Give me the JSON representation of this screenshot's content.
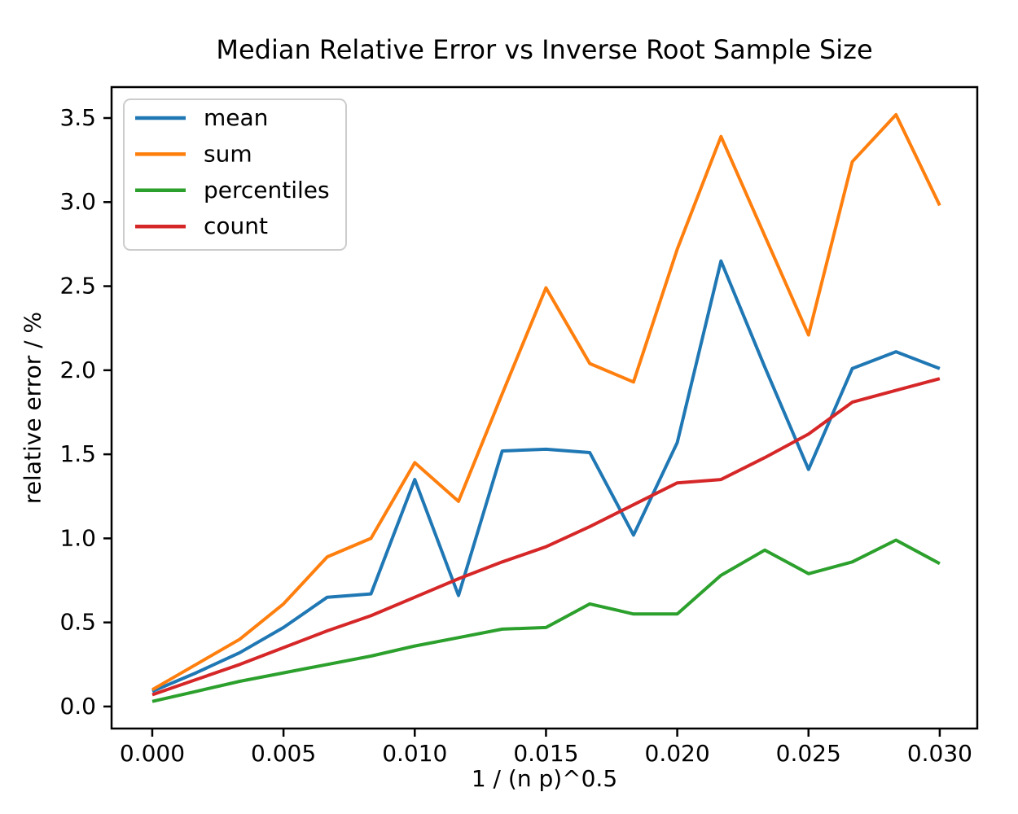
{
  "chart_data": {
    "type": "line",
    "title": "Median Relative Error vs Inverse Root Sample Size",
    "xlabel": "1 / (n p)^0.5",
    "ylabel": "relative error / %",
    "grid": false,
    "legend_position": "upper left",
    "xlim": [
      -0.00155,
      0.03143
    ],
    "ylim": [
      -0.131,
      3.684
    ],
    "x_ticks": {
      "values": [
        0.0,
        0.005,
        0.01,
        0.015,
        0.02,
        0.025,
        0.03
      ],
      "labels": [
        "0.000",
        "0.005",
        "0.010",
        "0.015",
        "0.020",
        "0.025",
        "0.030"
      ]
    },
    "y_ticks": {
      "values": [
        0.0,
        0.5,
        1.0,
        1.5,
        2.0,
        2.5,
        3.0,
        3.5
      ],
      "labels": [
        "0.0",
        "0.5",
        "1.0",
        "1.5",
        "2.0",
        "2.5",
        "3.0",
        "3.5"
      ]
    },
    "x": [
      0.0,
      0.001667,
      0.003333,
      0.005,
      0.006667,
      0.008333,
      0.01,
      0.011667,
      0.013333,
      0.015,
      0.016667,
      0.018333,
      0.02,
      0.021667,
      0.023333,
      0.025,
      0.026667,
      0.028333,
      0.03
    ],
    "series": [
      {
        "name": "mean",
        "color": "#1f77b4",
        "values": [
          0.09,
          0.2,
          0.32,
          0.47,
          0.65,
          0.67,
          1.35,
          0.66,
          1.52,
          1.53,
          1.51,
          1.02,
          1.57,
          2.65,
          2.02,
          1.41,
          2.01,
          2.11,
          2.01
        ]
      },
      {
        "name": "sum",
        "color": "#ff7f0e",
        "values": [
          0.1,
          0.25,
          0.4,
          0.61,
          0.89,
          1.0,
          1.45,
          1.22,
          1.86,
          2.49,
          2.04,
          1.93,
          2.72,
          3.39,
          2.8,
          2.21,
          3.24,
          3.52,
          2.98
        ]
      },
      {
        "name": "percentiles",
        "color": "#2ca02c",
        "values": [
          0.03,
          0.09,
          0.15,
          0.2,
          0.25,
          0.3,
          0.36,
          0.41,
          0.46,
          0.47,
          0.61,
          0.55,
          0.55,
          0.78,
          0.93,
          0.79,
          0.86,
          0.99,
          0.85
        ]
      },
      {
        "name": "count",
        "color": "#d62728",
        "values": [
          0.07,
          0.16,
          0.25,
          0.35,
          0.45,
          0.54,
          0.65,
          0.76,
          0.86,
          0.95,
          1.07,
          1.2,
          1.33,
          1.35,
          1.48,
          1.62,
          1.81,
          1.88,
          1.95
        ]
      }
    ]
  }
}
